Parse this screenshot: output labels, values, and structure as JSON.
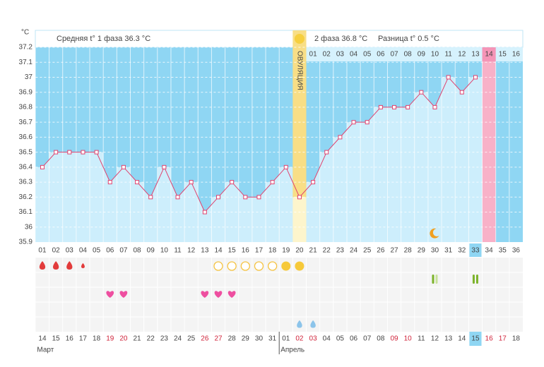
{
  "chart_data": {
    "type": "line",
    "unit": "°C",
    "phase1_text": "Средняя t° 1 фаза 36.3 °C",
    "phase2_text": "2 фаза 36.8 °C",
    "difference_text": "Разница t° 0.5 °C",
    "ovulation_text": "ОВУЛЯЦИЯ",
    "categories": [
      "01",
      "02",
      "03",
      "04",
      "05",
      "06",
      "07",
      "08",
      "09",
      "10",
      "11",
      "12",
      "13",
      "14",
      "15",
      "16",
      "17",
      "18",
      "19",
      "20",
      "21",
      "22",
      "23",
      "24",
      "25",
      "26",
      "27",
      "28",
      "29",
      "30",
      "31",
      "32",
      "33",
      "34",
      "35",
      "36"
    ],
    "values": [
      36.4,
      36.5,
      36.5,
      36.5,
      36.5,
      36.3,
      36.4,
      36.3,
      36.2,
      36.4,
      36.2,
      36.3,
      36.1,
      36.2,
      36.3,
      36.2,
      36.2,
      36.3,
      36.4,
      36.2,
      36.3,
      36.5,
      36.6,
      36.7,
      36.7,
      36.8,
      36.8,
      36.8,
      36.9,
      36.8,
      37.0,
      36.9,
      37.0,
      null,
      null,
      null
    ],
    "color": "#e0436f",
    "ylim": [
      35.9,
      37.2
    ],
    "yticks": [
      35.9,
      36,
      36.1,
      36.2,
      36.3,
      36.4,
      36.5,
      36.6,
      36.7,
      36.8,
      36.9,
      37,
      37.1,
      37.2
    ],
    "grid": true,
    "ovulation_day": 20,
    "expected_day": 34,
    "today_day": 33,
    "luteal_labels": [
      "01",
      "02",
      "03",
      "04",
      "05",
      "06",
      "07",
      "08",
      "09",
      "10",
      "11",
      "12",
      "13",
      "14",
      "15",
      "16"
    ],
    "dates": [
      "14",
      "15",
      "16",
      "17",
      "18",
      "19",
      "20",
      "21",
      "22",
      "23",
      "24",
      "25",
      "26",
      "27",
      "28",
      "29",
      "30",
      "31",
      "01",
      "02",
      "03",
      "04",
      "05",
      "06",
      "07",
      "08",
      "09",
      "10",
      "11",
      "12",
      "13",
      "14",
      "15",
      "16",
      "17",
      "18"
    ],
    "weekend_days": [
      6,
      7,
      13,
      14,
      20,
      21,
      27,
      28,
      34,
      35
    ],
    "months": [
      {
        "label": "Март",
        "day": 1
      },
      {
        "label": "Апрель",
        "day": 19
      }
    ],
    "markers": {
      "blood": [
        1,
        2,
        3
      ],
      "blood_small": [
        4
      ],
      "circles": [
        14,
        15,
        16,
        17,
        18
      ],
      "circles_filled": [
        19,
        20
      ],
      "hearts": [
        6,
        7,
        13,
        14,
        15
      ],
      "pills": [
        30,
        33
      ],
      "drops": [
        20,
        21
      ],
      "moon": [
        30
      ]
    }
  }
}
